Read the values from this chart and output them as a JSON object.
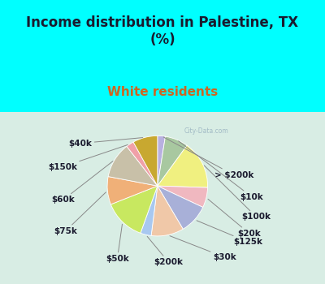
{
  "title": "Income distribution in Palestine, TX\n(%)",
  "subtitle": "White residents",
  "bg_color": "#00FFFF",
  "chart_bg": "#d8ede4",
  "labels": [
    "> $200k",
    "$10k",
    "$100k",
    "$20k",
    "$125k",
    "$30k",
    "$200k",
    "$50k",
    "$75k",
    "$60k",
    "$150k",
    "$40k"
  ],
  "sizes": [
    2.5,
    7.5,
    15.5,
    6.5,
    9.5,
    10.5,
    3.5,
    13.5,
    9.0,
    11.5,
    2.5,
    8.0
  ],
  "colors": [
    "#b8b0e0",
    "#a8c8a0",
    "#f0f080",
    "#f0b8c0",
    "#a8b0d8",
    "#f0c8a8",
    "#a8c8f0",
    "#c8e860",
    "#f0b078",
    "#c8c0a8",
    "#f0a0a8",
    "#c8a830"
  ],
  "label_color": "#1a1a2e",
  "title_color": "#1a1a2e",
  "subtitle_color": "#cc6622",
  "watermark": "City-Data.com",
  "title_fontsize": 12,
  "subtitle_fontsize": 11,
  "label_fontsize": 7.5,
  "startangle": 90,
  "label_positions": [
    [
      1.52,
      0.22,
      "center"
    ],
    [
      1.65,
      -0.22,
      "left"
    ],
    [
      1.68,
      -0.62,
      "left"
    ],
    [
      1.6,
      -0.95,
      "left"
    ],
    [
      1.52,
      -1.12,
      "left"
    ],
    [
      1.1,
      -1.42,
      "left"
    ],
    [
      0.22,
      -1.52,
      "center"
    ],
    [
      -0.8,
      -1.45,
      "center"
    ],
    [
      -1.6,
      -0.9,
      "right"
    ],
    [
      -1.65,
      -0.28,
      "right"
    ],
    [
      -1.6,
      0.38,
      "right"
    ],
    [
      -1.3,
      0.85,
      "right"
    ]
  ]
}
